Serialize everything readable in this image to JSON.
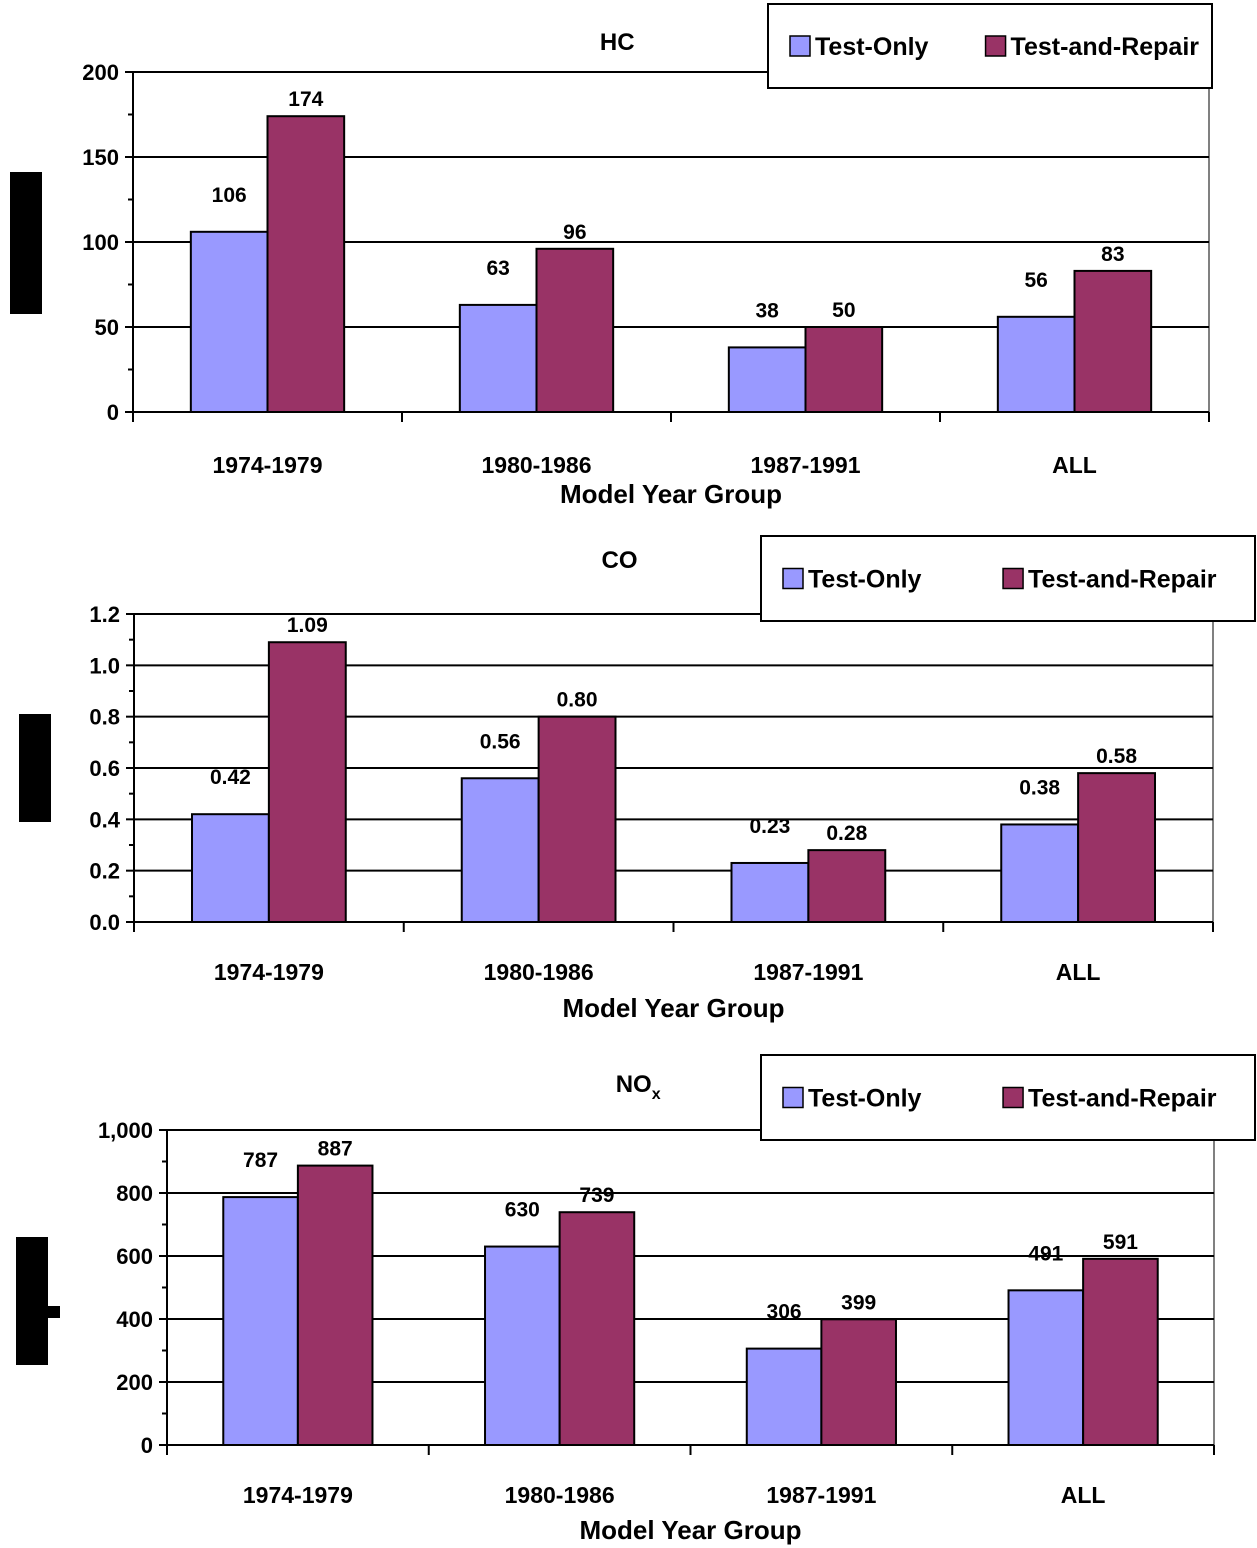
{
  "colors": {
    "test_only": "#9999FF",
    "test_and_repair": "#993366"
  },
  "chart_data": [
    {
      "type": "bar",
      "title": "HC",
      "categories": [
        "1974-1979",
        "1980-1986",
        "1987-1991",
        "ALL"
      ],
      "series": [
        {
          "name": "Test-Only",
          "values": [
            106,
            63,
            38,
            56
          ]
        },
        {
          "name": "Test-and-Repair",
          "values": [
            174,
            96,
            50,
            83
          ]
        }
      ],
      "data_labels": [
        [
          "106",
          "63",
          "38",
          "56"
        ],
        [
          "174",
          "96",
          "50",
          "83"
        ]
      ],
      "xlabel": "Model Year Group",
      "ylabel": "",
      "ylim": [
        0,
        200
      ],
      "yticks": [
        "0",
        "50",
        "100",
        "150",
        "200"
      ],
      "grid": true,
      "legend": "top-right"
    },
    {
      "type": "bar",
      "title": "CO",
      "categories": [
        "1974-1979",
        "1980-1986",
        "1987-1991",
        "ALL"
      ],
      "series": [
        {
          "name": "Test-Only",
          "values": [
            0.42,
            0.56,
            0.23,
            0.38
          ]
        },
        {
          "name": "Test-and-Repair",
          "values": [
            1.09,
            0.8,
            0.28,
            0.58
          ]
        }
      ],
      "data_labels": [
        [
          "0.42",
          "0.56",
          "0.23",
          "0.38"
        ],
        [
          "1.09",
          "0.80",
          "0.28",
          "0.58"
        ]
      ],
      "xlabel": "Model Year Group",
      "ylabel": "",
      "ylim": [
        0,
        1.2
      ],
      "yticks": [
        "0.0",
        "0.2",
        "0.4",
        "0.6",
        "0.8",
        "1.0",
        "1.2"
      ],
      "grid": true,
      "legend": "top-right"
    },
    {
      "type": "bar",
      "title": "NO",
      "title_subscript": "x",
      "categories": [
        "1974-1979",
        "1980-1986",
        "1987-1991",
        "ALL"
      ],
      "series": [
        {
          "name": "Test-Only",
          "values": [
            787,
            630,
            306,
            491
          ]
        },
        {
          "name": "Test-and-Repair",
          "values": [
            887,
            739,
            399,
            591
          ]
        }
      ],
      "data_labels": [
        [
          "787",
          "630",
          "306",
          "491"
        ],
        [
          "887",
          "739",
          "399",
          "591"
        ]
      ],
      "xlabel": "Model Year Group",
      "ylabel": "",
      "ylim": [
        0,
        1000
      ],
      "yticks": [
        "0",
        "200",
        "400",
        "600",
        "800",
        "1,000"
      ],
      "grid": true,
      "legend": "top-right"
    }
  ]
}
